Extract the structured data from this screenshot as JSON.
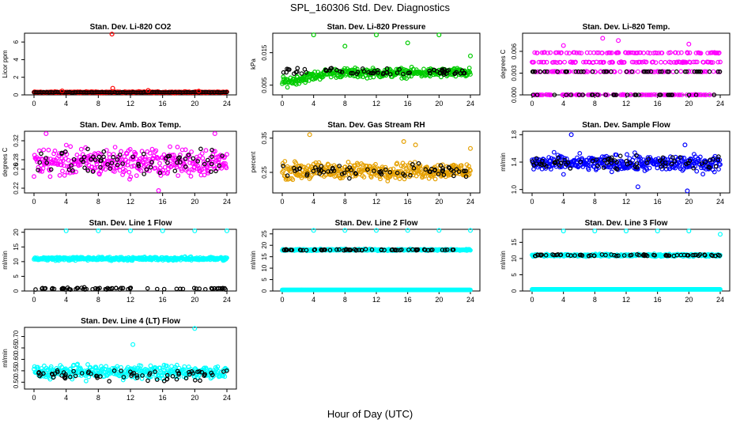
{
  "figure": {
    "title": "SPL_160306  Std. Dev. Diagnostics",
    "xlabel": "Hour of Day (UTC)"
  },
  "chart_data": [
    {
      "type": "scatter",
      "title": "Stan. Dev. Li-820 CO2",
      "ylabel": "Licor ppm",
      "xlim": [
        0,
        24
      ],
      "ylim": [
        0,
        7
      ],
      "xticks": [
        0,
        4,
        8,
        12,
        16,
        20,
        24
      ],
      "yticks": [
        "0",
        "2",
        "4",
        "6"
      ],
      "ytick_values": [
        0,
        2,
        4,
        6
      ],
      "baseline": 0.3,
      "noise": 0.06,
      "black_band": null,
      "outliers": [
        [
          9.7,
          6.9
        ],
        [
          9.8,
          0.75
        ],
        [
          3.5,
          0.45
        ],
        [
          14.2,
          0.5
        ],
        [
          20.5,
          0.42
        ]
      ],
      "series": [
        {
          "color": "#ff0000"
        },
        {
          "color": "#000000"
        }
      ]
    },
    {
      "type": "scatter",
      "title": "Stan. Dev. Li-820 Pressure",
      "ylabel": "kPa",
      "xlim": [
        0,
        24
      ],
      "ylim": [
        0.002,
        0.021
      ],
      "xticks": [
        0,
        4,
        8,
        12,
        16,
        20,
        24
      ],
      "yticks": [
        "0.005",
        "0.015"
      ],
      "ytick_values": [
        0.005,
        0.015
      ],
      "baseline": 0.0085,
      "noise": 0.0012,
      "trend": 0.003,
      "black_band": 0.009,
      "outliers": [
        [
          4,
          0.0205
        ],
        [
          8,
          0.017
        ],
        [
          12,
          0.0205
        ],
        [
          16,
          0.018
        ],
        [
          20,
          0.0205
        ],
        [
          24,
          0.014
        ]
      ],
      "series": [
        {
          "color": "#00cc00"
        },
        {
          "color": "#000000"
        }
      ]
    },
    {
      "type": "scatter",
      "title": "Stan. Dev. Li-820 Temp.",
      "ylabel": "degrees C",
      "xlim": [
        0,
        24
      ],
      "ylim": [
        0,
        0.0085
      ],
      "xticks": [
        0,
        4,
        8,
        12,
        16,
        20,
        24
      ],
      "yticks": [
        "0.000",
        "0.003",
        "0.006"
      ],
      "ytick_values": [
        0,
        0.003,
        0.006
      ],
      "baseline": 0.0032,
      "noise": 0.0018,
      "levels": [
        0,
        0.0032,
        0.0045,
        0.0058
      ],
      "black_band": 0.0032,
      "outliers": [
        [
          9,
          0.0078
        ],
        [
          11,
          0.0075
        ],
        [
          4,
          0.0068
        ],
        [
          20,
          0.007
        ]
      ],
      "series": [
        {
          "color": "#ff00ff"
        },
        {
          "color": "#000000"
        }
      ]
    },
    {
      "type": "scatter",
      "title": "Stan. Dev. Amb. Box Temp.",
      "ylabel": "degrees C",
      "xlim": [
        0,
        24
      ],
      "ylim": [
        0.21,
        0.34
      ],
      "xticks": [
        0,
        4,
        8,
        12,
        16,
        20,
        24
      ],
      "yticks": [
        "0.22",
        "0.26",
        "0.28",
        "0.32"
      ],
      "ytick_values": [
        0.22,
        0.26,
        0.28,
        0.32
      ],
      "baseline": 0.275,
      "noise": 0.025,
      "black_band": 0.275,
      "outliers": [
        [
          15.5,
          0.215
        ],
        [
          1.5,
          0.335
        ],
        [
          22.5,
          0.335
        ]
      ],
      "series": [
        {
          "color": "#ff00ff"
        },
        {
          "color": "#000000"
        }
      ]
    },
    {
      "type": "scatter",
      "title": "Stan. Dev. Gas Stream RH",
      "ylabel": "percent",
      "xlim": [
        0,
        24
      ],
      "ylim": [
        0.19,
        0.37
      ],
      "xticks": [
        0,
        4,
        8,
        12,
        16,
        20,
        24
      ],
      "yticks": [
        "0.25",
        "0.35"
      ],
      "ytick_values": [
        0.25,
        0.35
      ],
      "baseline": 0.255,
      "noise": 0.02,
      "black_band": 0.255,
      "outliers": [
        [
          3.5,
          0.36
        ],
        [
          15.5,
          0.34
        ],
        [
          17,
          0.33
        ],
        [
          24,
          0.32
        ]
      ],
      "series": [
        {
          "color": "#e5a000"
        },
        {
          "color": "#000000"
        }
      ]
    },
    {
      "type": "scatter",
      "title": "Stan. Dev. Sample Flow",
      "ylabel": "ml/min",
      "xlim": [
        0,
        24
      ],
      "ylim": [
        0.95,
        1.85
      ],
      "xticks": [
        0,
        4,
        8,
        12,
        16,
        20,
        24
      ],
      "yticks": [
        "1.0",
        "1.4",
        "1.8"
      ],
      "ytick_values": [
        1.0,
        1.4,
        1.8
      ],
      "baseline": 1.38,
      "noise": 0.1,
      "black_band": 1.4,
      "outliers": [
        [
          5,
          1.8
        ],
        [
          19.5,
          1.65
        ],
        [
          19.8,
          0.98
        ],
        [
          13.5,
          1.04
        ]
      ],
      "series": [
        {
          "color": "#0000ff"
        },
        {
          "color": "#000000"
        }
      ]
    },
    {
      "type": "scatter",
      "title": "Stan. Dev. Line 1 Flow",
      "ylabel": "ml/min",
      "xlim": [
        0,
        24
      ],
      "ylim": [
        0,
        21
      ],
      "xticks": [
        0,
        4,
        8,
        12,
        16,
        20,
        24
      ],
      "yticks": [
        "0",
        "5",
        "10",
        "15",
        "20"
      ],
      "ytick_values": [
        0,
        5,
        10,
        15,
        20
      ],
      "baseline": 11,
      "noise": 0.5,
      "black_band": 0.8,
      "outliers": [
        [
          4,
          20.5
        ],
        [
          8,
          20.5
        ],
        [
          12,
          20.5
        ],
        [
          16,
          20.5
        ],
        [
          20,
          20.5
        ],
        [
          24,
          20.5
        ]
      ],
      "series": [
        {
          "color": "#00ffff"
        },
        {
          "color": "#000000"
        }
      ]
    },
    {
      "type": "scatter",
      "title": "Stan. Dev. Line 2 Flow",
      "ylabel": "ml/min",
      "xlim": [
        0,
        24
      ],
      "ylim": [
        0,
        27
      ],
      "xticks": [
        0,
        4,
        8,
        12,
        16,
        20,
        24
      ],
      "yticks": [
        "0",
        "5",
        "10",
        "15",
        "20",
        "25"
      ],
      "ytick_values": [
        0,
        5,
        10,
        15,
        20,
        25
      ],
      "baseline": 18,
      "noise": 0.3,
      "levels_cyan": [
        0.5,
        18
      ],
      "black_band": 18,
      "outliers": [
        [
          4,
          26.5
        ],
        [
          8,
          26.5
        ],
        [
          12,
          26.5
        ],
        [
          16,
          26.5
        ],
        [
          20,
          26.5
        ],
        [
          24,
          26.5
        ]
      ],
      "series": [
        {
          "color": "#00ffff"
        },
        {
          "color": "#000000"
        }
      ]
    },
    {
      "type": "scatter",
      "title": "Stan. Dev. Line 3 Flow",
      "ylabel": "ml/min",
      "xlim": [
        0,
        24
      ],
      "ylim": [
        0,
        19
      ],
      "xticks": [
        0,
        4,
        8,
        12,
        16,
        20,
        24
      ],
      "yticks": [
        "0",
        "5",
        "10",
        "15"
      ],
      "ytick_values": [
        0,
        5,
        10,
        15
      ],
      "baseline": 11,
      "noise": 0.3,
      "levels_cyan": [
        0.5,
        11
      ],
      "black_band": 11,
      "outliers": [
        [
          4,
          18.5
        ],
        [
          8,
          18.5
        ],
        [
          12,
          18.5
        ],
        [
          16,
          18.5
        ],
        [
          20,
          18.5
        ],
        [
          24,
          17.5
        ]
      ],
      "series": [
        {
          "color": "#00ffff"
        },
        {
          "color": "#000000"
        }
      ]
    },
    {
      "type": "scatter",
      "title": "Stan. Dev. Line 4 (LT) Flow",
      "ylabel": "ml/min",
      "xlim": [
        0,
        24
      ],
      "ylim": [
        0.47,
        0.74
      ],
      "xticks": [
        0,
        4,
        8,
        12,
        16,
        20,
        24
      ],
      "yticks": [
        "0.50",
        "0.55",
        "0.60",
        "0.65",
        "0.70"
      ],
      "ytick_values": [
        0.5,
        0.55,
        0.6,
        0.65,
        0.7
      ],
      "baseline": 0.545,
      "noise": 0.025,
      "black_band": 0.53,
      "outliers": [
        [
          20,
          0.735
        ],
        [
          12.3,
          0.665
        ]
      ],
      "series": [
        {
          "color": "#00ffff"
        },
        {
          "color": "#000000"
        }
      ]
    }
  ]
}
